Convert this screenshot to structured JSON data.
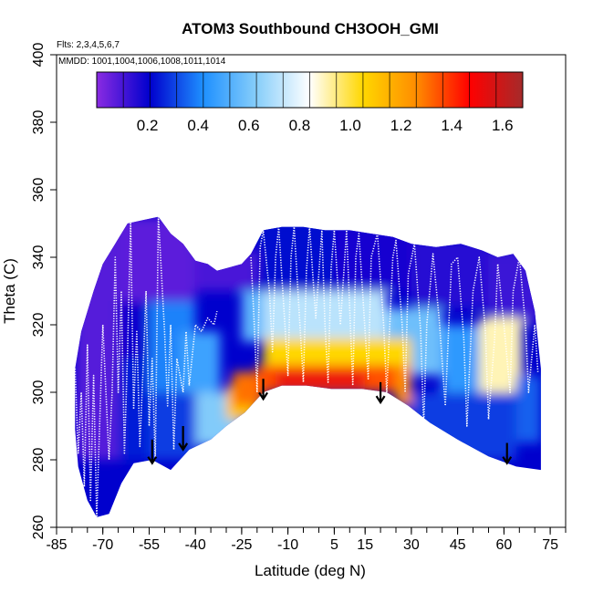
{
  "chart_data": {
    "type": "heatmap",
    "title": "ATOM3 Southbound CH3OOH_GMI",
    "flights_note": "Flts: 2,3,4,5,6,7",
    "dates_note": "MMDD: 1001,1004,1006,1008,1011,1014",
    "xlabel": "Latitude (deg N)",
    "ylabel": "Theta (C)",
    "xlim": [
      -85,
      80
    ],
    "ylim": [
      260,
      400
    ],
    "x_ticks": [
      -85,
      -70,
      -55,
      -40,
      -25,
      -10,
      5,
      15,
      30,
      45,
      60,
      75
    ],
    "y_ticks": [
      260,
      280,
      300,
      320,
      340,
      360,
      380,
      400
    ],
    "colorbar": {
      "range": [
        0.0,
        1.68
      ],
      "ticks": [
        0.2,
        0.4,
        0.6,
        0.8,
        1.0,
        1.2,
        1.4,
        1.6
      ],
      "colors": [
        "#8a2be2",
        "#0000cd",
        "#1e90ff",
        "#87cefa",
        "#ffffff",
        "#ffd700",
        "#ff8c00",
        "#ff0000",
        "#a52a2a"
      ]
    },
    "outline": [
      [
        -79,
        289
      ],
      [
        -79,
        307
      ],
      [
        -77,
        318
      ],
      [
        -73,
        330
      ],
      [
        -70,
        338
      ],
      [
        -66,
        344
      ],
      [
        -62,
        350
      ],
      [
        -57,
        351
      ],
      [
        -52,
        352
      ],
      [
        -48,
        347
      ],
      [
        -44,
        344
      ],
      [
        -40,
        339
      ],
      [
        -36,
        338
      ],
      [
        -33,
        336
      ],
      [
        -29,
        337
      ],
      [
        -25,
        338
      ],
      [
        -22,
        341
      ],
      [
        -18,
        348
      ],
      [
        -12,
        349
      ],
      [
        -5,
        349
      ],
      [
        2,
        348
      ],
      [
        10,
        348
      ],
      [
        17,
        347
      ],
      [
        24,
        346
      ],
      [
        30,
        344
      ],
      [
        38,
        343
      ],
      [
        46,
        344
      ],
      [
        53,
        342
      ],
      [
        58,
        340
      ],
      [
        63,
        341
      ],
      [
        67,
        336
      ],
      [
        70,
        324
      ],
      [
        72,
        307
      ],
      [
        72,
        277
      ],
      [
        64,
        278
      ],
      [
        55,
        281
      ],
      [
        45,
        286
      ],
      [
        36,
        291
      ],
      [
        29,
        296
      ],
      [
        22,
        300
      ],
      [
        14,
        301
      ],
      [
        4,
        301
      ],
      [
        -4,
        302
      ],
      [
        -12,
        302
      ],
      [
        -18,
        300
      ],
      [
        -24,
        294
      ],
      [
        -30,
        290
      ],
      [
        -35,
        286
      ],
      [
        -42,
        283
      ],
      [
        -48,
        277
      ],
      [
        -54,
        280
      ],
      [
        -60,
        279
      ],
      [
        -64,
        273
      ],
      [
        -68,
        264
      ],
      [
        -72,
        263
      ],
      [
        -75,
        268
      ],
      [
        -78,
        278
      ]
    ],
    "cells": [
      {
        "lat": [
          -79,
          -65
        ],
        "theta": [
          280,
          352
        ],
        "value": 0.08
      },
      {
        "lat": [
          -65,
          -40
        ],
        "theta": [
          327,
          352
        ],
        "value": 0.07
      },
      {
        "lat": [
          -40,
          -20
        ],
        "theta": [
          330,
          342
        ],
        "value": 0.1
      },
      {
        "lat": [
          -20,
          5
        ],
        "theta": [
          330,
          350
        ],
        "value": 0.22
      },
      {
        "lat": [
          5,
          30
        ],
        "theta": [
          330,
          349
        ],
        "value": 0.18
      },
      {
        "lat": [
          30,
          55
        ],
        "theta": [
          325,
          345
        ],
        "value": 0.15
      },
      {
        "lat": [
          55,
          72
        ],
        "theta": [
          320,
          342
        ],
        "value": 0.12
      },
      {
        "lat": [
          -65,
          -55
        ],
        "theta": [
          310,
          327
        ],
        "value": 0.2
      },
      {
        "lat": [
          -55,
          -40
        ],
        "theta": [
          300,
          327
        ],
        "value": 0.4
      },
      {
        "lat": [
          -45,
          -32
        ],
        "theta": [
          300,
          318
        ],
        "value": 0.48
      },
      {
        "lat": [
          -40,
          -25
        ],
        "theta": [
          284,
          300
        ],
        "value": 0.62
      },
      {
        "lat": [
          -25,
          -18
        ],
        "theta": [
          315,
          330
        ],
        "value": 0.55
      },
      {
        "lat": [
          -18,
          22
        ],
        "theta": [
          315,
          330
        ],
        "value": 0.72
      },
      {
        "lat": [
          22,
          40
        ],
        "theta": [
          305,
          325
        ],
        "value": 0.58
      },
      {
        "lat": [
          40,
          52
        ],
        "theta": [
          300,
          320
        ],
        "value": 0.45
      },
      {
        "lat": [
          52,
          66
        ],
        "theta": [
          300,
          322
        ],
        "value": 0.9
      },
      {
        "lat": [
          64,
          72
        ],
        "theta": [
          285,
          305
        ],
        "value": 0.35
      },
      {
        "lat": [
          -65,
          -55
        ],
        "theta": [
          280,
          310
        ],
        "value": 0.25
      },
      {
        "lat": [
          -55,
          -40
        ],
        "theta": [
          280,
          300
        ],
        "value": 0.3
      },
      {
        "lat": [
          30,
          64
        ],
        "theta": [
          280,
          300
        ],
        "value": 0.3
      },
      {
        "lat": [
          -18,
          30
        ],
        "theta": [
          308,
          316
        ],
        "value": 1.05
      },
      {
        "lat": [
          -30,
          -20
        ],
        "theta": [
          292,
          302
        ],
        "value": 1.1
      },
      {
        "lat": [
          -28,
          -18
        ],
        "theta": [
          296,
          306
        ],
        "value": 1.3
      },
      {
        "lat": [
          -20,
          25
        ],
        "theta": [
          300,
          308
        ],
        "value": 1.35
      },
      {
        "lat": [
          -14,
          15
        ],
        "theta": [
          301,
          306
        ],
        "value": 1.52
      },
      {
        "lat": [
          25,
          30
        ],
        "theta": [
          296,
          308
        ],
        "value": 1.25
      }
    ],
    "arrows": [
      {
        "lat": -54,
        "theta_top": 286,
        "theta_tip": 279
      },
      {
        "lat": -44,
        "theta_top": 290,
        "theta_tip": 283
      },
      {
        "lat": -18,
        "theta_top": 304,
        "theta_tip": 298
      },
      {
        "lat": 20,
        "theta_top": 303,
        "theta_tip": 297
      },
      {
        "lat": 61,
        "theta_top": 285,
        "theta_tip": 279
      }
    ],
    "flight_tracks": [
      [
        [
          -79,
          307
        ],
        [
          -78,
          282
        ],
        [
          -77,
          300
        ],
        [
          -76,
          272
        ],
        [
          -75,
          314
        ],
        [
          -74,
          268
        ],
        [
          -73,
          305
        ],
        [
          -72,
          263
        ],
        [
          -70,
          320
        ],
        [
          -68,
          280
        ],
        [
          -67,
          300
        ],
        [
          -66,
          340
        ],
        [
          -65,
          300
        ],
        [
          -64,
          330
        ],
        [
          -63,
          282
        ],
        [
          -62,
          312
        ],
        [
          -61,
          350
        ],
        [
          -60,
          295
        ],
        [
          -59,
          318
        ],
        [
          -58,
          284
        ],
        [
          -57,
          306
        ],
        [
          -56,
          330
        ],
        [
          -55,
          290
        ],
        [
          -54,
          310
        ],
        [
          -53,
          280
        ],
        [
          -52,
          352
        ],
        [
          -50,
          318
        ],
        [
          -49,
          296
        ],
        [
          -48,
          320
        ],
        [
          -47,
          283
        ],
        [
          -46,
          310
        ],
        [
          -44,
          300
        ],
        [
          -43,
          318
        ],
        [
          -42,
          302
        ],
        [
          -40,
          320
        ],
        [
          -38,
          318
        ],
        [
          -36,
          322
        ],
        [
          -34,
          320
        ],
        [
          -33,
          324
        ]
      ],
      [
        [
          -22,
          340
        ],
        [
          -21,
          322
        ],
        [
          -20,
          300
        ],
        [
          -19,
          343
        ],
        [
          -18,
          348
        ],
        [
          -16,
          330
        ],
        [
          -15,
          312
        ],
        [
          -14,
          340
        ],
        [
          -13,
          349
        ],
        [
          -11,
          320
        ],
        [
          -10,
          305
        ],
        [
          -9,
          340
        ],
        [
          -8,
          349
        ],
        [
          -6,
          318
        ],
        [
          -5,
          303
        ],
        [
          -4,
          336
        ],
        [
          -3,
          349
        ],
        [
          -1,
          322
        ],
        [
          1,
          348
        ],
        [
          2,
          320
        ],
        [
          3,
          303
        ],
        [
          4,
          337
        ],
        [
          5,
          348
        ],
        [
          7,
          320
        ],
        [
          9,
          348
        ],
        [
          11,
          302
        ],
        [
          12,
          340
        ],
        [
          13,
          347
        ],
        [
          15,
          318
        ],
        [
          16,
          304
        ],
        [
          17,
          340
        ],
        [
          19,
          347
        ],
        [
          21,
          320
        ],
        [
          22,
          300
        ],
        [
          24,
          340
        ],
        [
          25,
          345
        ],
        [
          27,
          320
        ],
        [
          28,
          300
        ],
        [
          29,
          335
        ],
        [
          31,
          344
        ],
        [
          33,
          318
        ],
        [
          34,
          290
        ],
        [
          35,
          320
        ],
        [
          37,
          341
        ],
        [
          39,
          322
        ],
        [
          41,
          296
        ],
        [
          43,
          338
        ],
        [
          45,
          340
        ],
        [
          47,
          316
        ],
        [
          48,
          290
        ],
        [
          50,
          330
        ],
        [
          52,
          340
        ],
        [
          54,
          318
        ],
        [
          55,
          292
        ],
        [
          57,
          316
        ],
        [
          58,
          338
        ],
        [
          60,
          320
        ],
        [
          62,
          300
        ],
        [
          63,
          330
        ],
        [
          65,
          340
        ],
        [
          67,
          320
        ],
        [
          68,
          300
        ],
        [
          70,
          320
        ],
        [
          71,
          306
        ]
      ]
    ]
  }
}
